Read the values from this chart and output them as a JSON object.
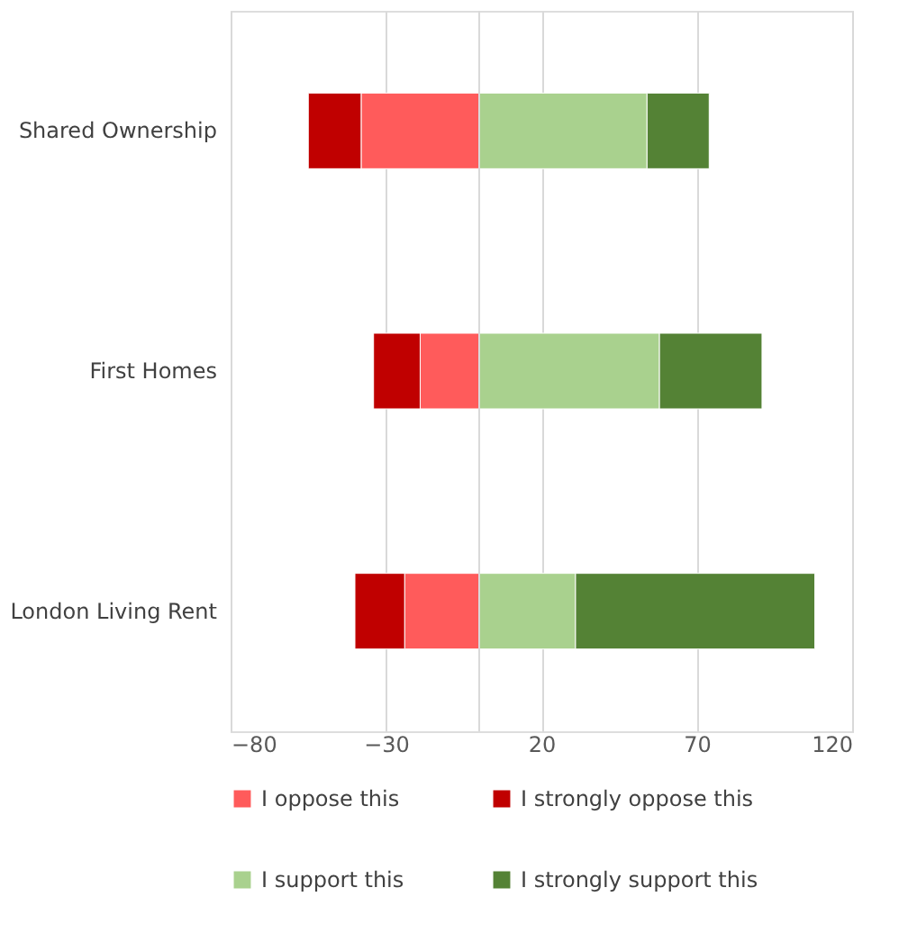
{
  "chart_data": {
    "type": "bar",
    "orientation": "horizontal",
    "stacked": true,
    "categories": [
      "Shared Ownership",
      "First Homes",
      "London Living Rent"
    ],
    "series": [
      {
        "name": "I oppose this",
        "color": "#ff5b5b",
        "values": [
          -38,
          -19,
          -24
        ]
      },
      {
        "name": "I strongly oppose this",
        "color": "#c00000",
        "values": [
          -17,
          -15,
          -16
        ]
      },
      {
        "name": "I support this",
        "color": "#a9d18e",
        "values": [
          54,
          58,
          31
        ]
      },
      {
        "name": "I strongly support this",
        "color": "#548235",
        "values": [
          20,
          33,
          77
        ]
      }
    ],
    "xlim": [
      -80,
      120
    ],
    "xticks": [
      -80,
      -30,
      20,
      70,
      120
    ],
    "grid": "x",
    "legend": "bottom",
    "ref_lines": [
      {
        "axis": "x",
        "value": 0,
        "color": "#d9d9d9"
      }
    ]
  }
}
